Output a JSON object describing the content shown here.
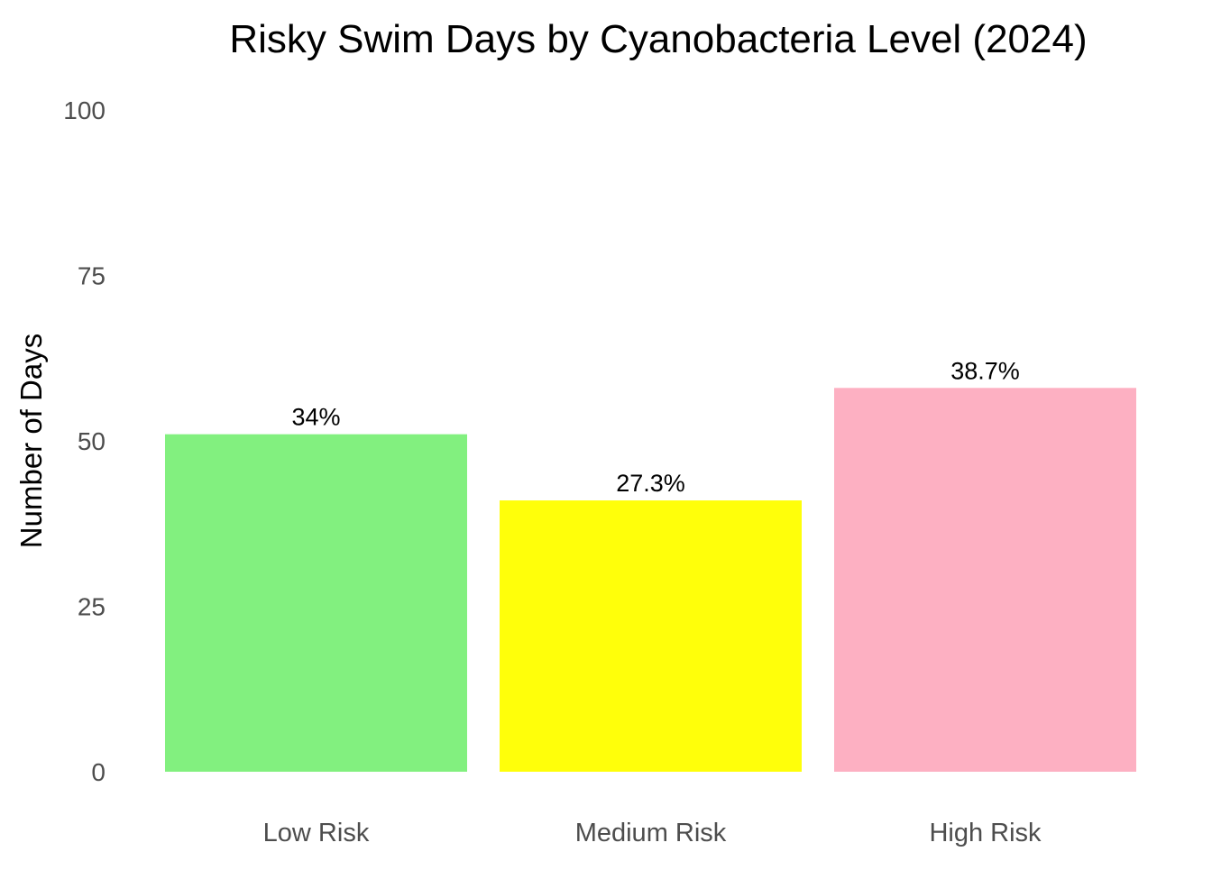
{
  "chart_data": {
    "type": "bar",
    "title": "Risky Swim Days by Cyanobacteria Level (2024)",
    "xlabel": "",
    "ylabel": "Number of Days",
    "categories": [
      "Low Risk",
      "Medium Risk",
      "High Risk"
    ],
    "values": [
      51,
      41,
      58
    ],
    "data_labels": [
      "34%",
      "27.3%",
      "38.7%"
    ],
    "colors": [
      "#82f07f",
      "#ffff0a",
      "#fdb0c2"
    ],
    "ylim": [
      0,
      100
    ],
    "yticks": [
      0,
      25,
      50,
      75,
      100
    ],
    "grid": false,
    "legend": "none"
  }
}
